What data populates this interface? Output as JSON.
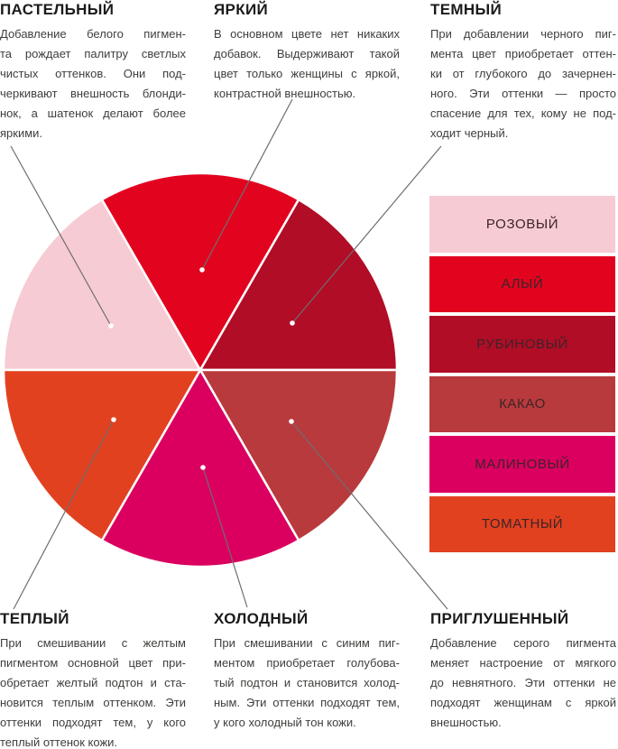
{
  "tone_blocks": {
    "pastel": {
      "heading": "ПАСТЕЛЬНЫЙ",
      "lines": [
        "Добавление белого пигмен-",
        "та рождает палитру светлых",
        "чистых оттенков. Они под-",
        "черкивают внешность блонди-",
        "нок, а шатенок делают более",
        "яркими."
      ]
    },
    "bright": {
      "heading": "ЯРКИЙ",
      "lines": [
        "В основном цвете нет никаких",
        "добавок. Выдерживают такой",
        "цвет только женщины с яркой,",
        "контрастной внешностью."
      ]
    },
    "dark": {
      "heading": "ТЕМНЫЙ",
      "lines": [
        "При добавлении черного пиг-",
        "мента цвет приобретает оттен-",
        "ки от глубокого до зачернен-",
        "ного. Эти оттенки — просто",
        "спасение для тех, кому не под-",
        "ходит черный."
      ]
    },
    "warm": {
      "heading": "ТЕПЛЫЙ",
      "lines": [
        "При смешивании с желтым",
        "пигментом основной цвет при-",
        "обретает желтый подтон и ста-",
        "новится теплым оттенком. Эти",
        "оттенки подходят тем, у кого",
        "теплый оттенок кожи."
      ]
    },
    "cold": {
      "heading": "ХОЛОДНЫЙ",
      "lines": [
        "При смешивании с синим пиг-",
        "ментом приобретает голубова-",
        "тый подтон и становится холод-",
        "ным. Эти оттенки подходят тем,",
        "у кого холодный тон кожи."
      ]
    },
    "muted": {
      "heading": "ПРИГЛУШЕННЫЙ",
      "lines": [
        "Добавление серого пигмента",
        "меняет настроение от мягкого",
        "до невнятного. Эти оттенки не",
        "подходят женщинам с яркой",
        "внешностью."
      ]
    }
  },
  "legend": {
    "items": [
      {
        "label": "РОЗОВЫЙ",
        "color": "#F7CBD3"
      },
      {
        "label": "АЛЫЙ",
        "color": "#E2041F"
      },
      {
        "label": "РУБИНОВЫЙ",
        "color": "#B10D26"
      },
      {
        "label": "КАКАО",
        "color": "#B93A3C"
      },
      {
        "label": "МАЛИНОВЫЙ",
        "color": "#DB0060"
      },
      {
        "label": "ТОМАТНЫЙ",
        "color": "#E2411F"
      }
    ],
    "label_color": "#3B2429"
  },
  "chart_data": {
    "type": "pie",
    "legend_position": "right",
    "center": [
      222,
      410
    ],
    "radius": 218,
    "divider_color": "#FFFFFF",
    "callout_line_color": "#6E6E6E",
    "dot_color": "#FFFFFF",
    "segments": [
      {
        "name": "РОЗОВЫЙ",
        "tone": "ПАСТЕЛЬНЫЙ",
        "fraction": 0.1667,
        "color": "#F7CBD3",
        "start_angle": 120,
        "end_angle": 180,
        "dot": [
          123,
          361
        ],
        "callout_end": [
          12,
          162
        ]
      },
      {
        "name": "АЛЫЙ",
        "tone": "ЯРКИЙ",
        "fraction": 0.1667,
        "color": "#E2041F",
        "start_angle": 60,
        "end_angle": 120,
        "dot": [
          224,
          299
        ],
        "callout_end": [
          324,
          110
        ]
      },
      {
        "name": "РУБИНОВЫЙ",
        "tone": "ТЕМНЫЙ",
        "fraction": 0.1667,
        "color": "#B10D26",
        "start_angle": 0,
        "end_angle": 60,
        "dot": [
          324,
          358
        ],
        "callout_end": [
          489,
          162
        ]
      },
      {
        "name": "КАКАО",
        "tone": "ПРИГЛУШЕННЫЙ",
        "fraction": 0.1667,
        "color": "#B93A3C",
        "start_angle": 300,
        "end_angle": 360,
        "dot": [
          323,
          467
        ],
        "callout_end": [
          496,
          675
        ]
      },
      {
        "name": "МАЛИНОВЫЙ",
        "tone": "ХОЛОДНЫЙ",
        "fraction": 0.1667,
        "color": "#DB0060",
        "start_angle": 240,
        "end_angle": 300,
        "dot": [
          225,
          518
        ],
        "callout_end": [
          274,
          673
        ]
      },
      {
        "name": "ТОМАТНЫЙ",
        "tone": "ТЕПЛЫЙ",
        "fraction": 0.1667,
        "color": "#E2411F",
        "start_angle": 180,
        "end_angle": 240,
        "dot": [
          126,
          465
        ],
        "callout_end": [
          15,
          675
        ]
      }
    ]
  },
  "styles": {
    "background": "#FFFFFF",
    "heading_color": "#1B1B1B",
    "text_color": "#3F3E3C"
  }
}
